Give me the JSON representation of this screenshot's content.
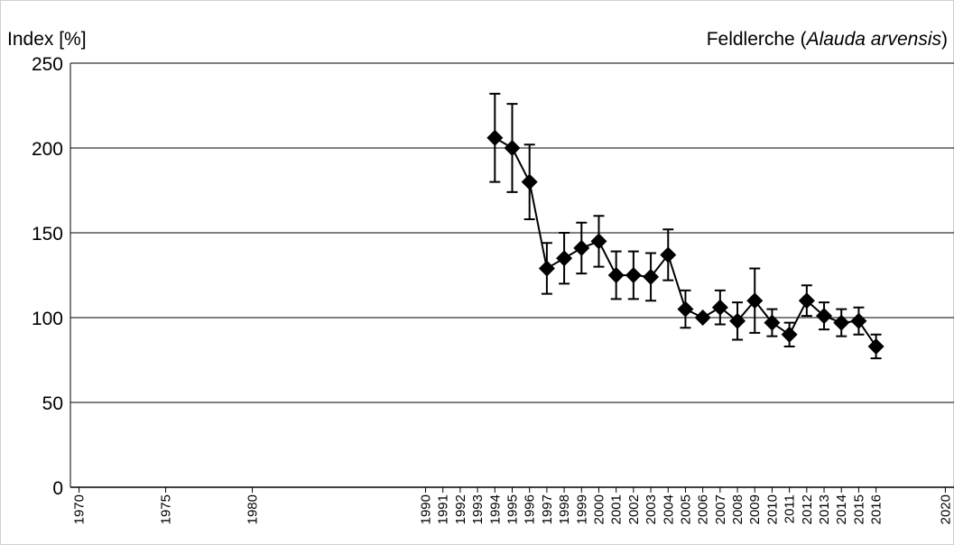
{
  "chart_data": {
    "type": "line",
    "title": [
      "Feldlerche (",
      "Alauda arvensis",
      ")"
    ],
    "y_label": "Index [%]",
    "x": [
      1994,
      1995,
      1996,
      1997,
      1998,
      1999,
      2000,
      2001,
      2002,
      2003,
      2004,
      2005,
      2006,
      2007,
      2008,
      2009,
      2010,
      2011,
      2012,
      2013,
      2014,
      2015,
      2016
    ],
    "series": [
      {
        "name": "Index",
        "color": "#000000",
        "values": [
          206,
          200,
          180,
          129,
          135,
          141,
          145,
          125,
          125,
          124,
          137,
          105,
          100,
          106,
          98,
          110,
          97,
          90,
          110,
          101,
          97,
          98,
          83
        ],
        "errors": [
          26,
          26,
          22,
          15,
          15,
          15,
          15,
          14,
          14,
          14,
          15,
          11,
          0,
          10,
          11,
          19,
          8,
          7,
          9,
          8,
          8,
          8,
          7
        ]
      }
    ],
    "xlim": [
      1969.5,
      2020.5
    ],
    "xticks": [
      1970,
      1975,
      1980,
      1990,
      1991,
      1992,
      1993,
      1994,
      1995,
      1996,
      1997,
      1998,
      1999,
      2000,
      2001,
      2002,
      2003,
      2004,
      2005,
      2006,
      2007,
      2008,
      2009,
      2010,
      2011,
      2012,
      2013,
      2014,
      2015,
      2016,
      2020
    ],
    "ylim": [
      0,
      250
    ],
    "yticks": [
      0,
      50,
      100,
      150,
      200,
      250
    ],
    "grid": true
  }
}
